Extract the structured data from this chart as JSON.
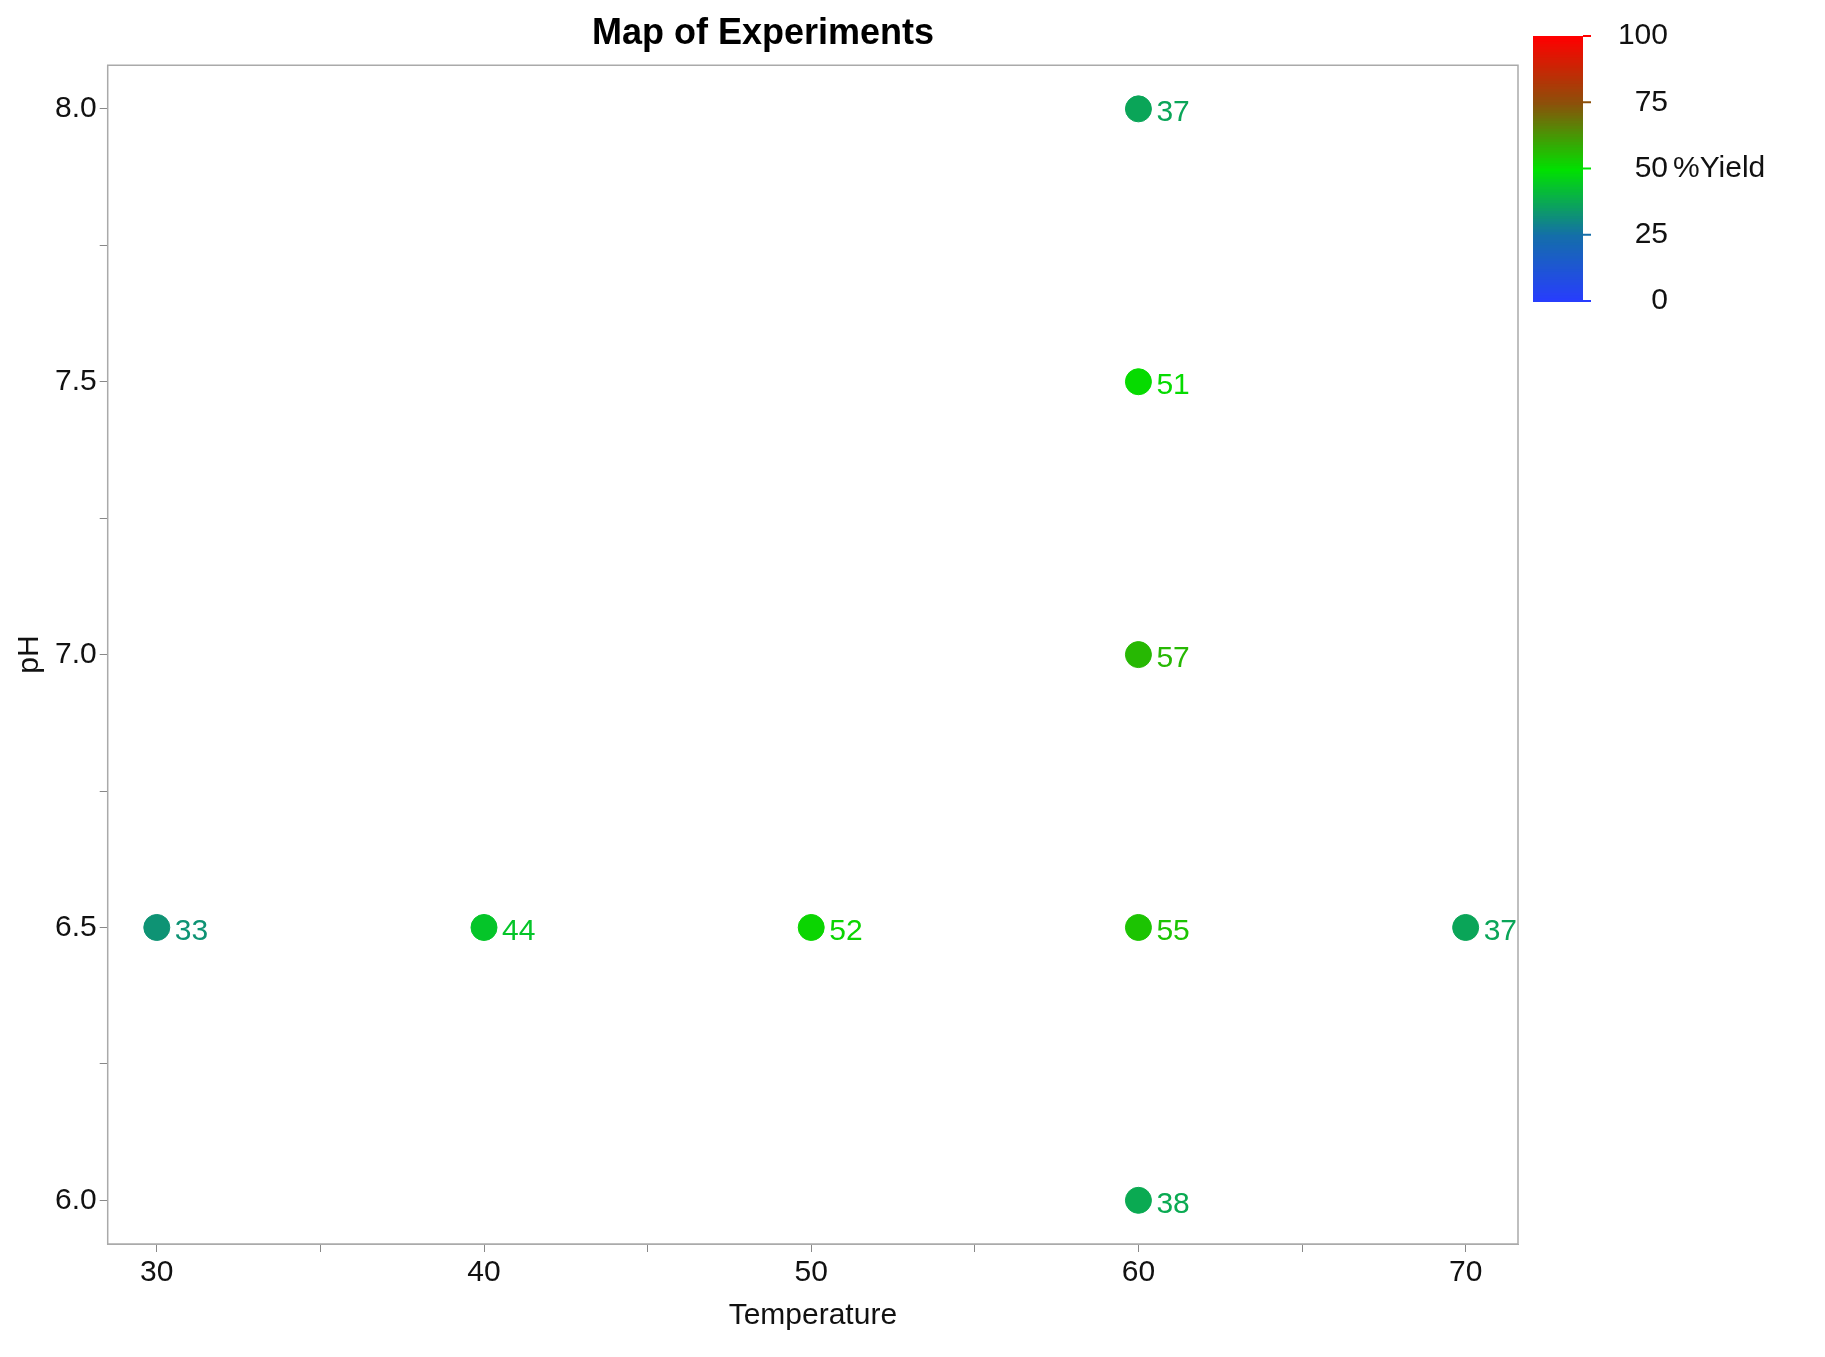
{
  "chart_data": {
    "type": "scatter",
    "title": "Map of Experiments",
    "xlabel": "Temperature",
    "ylabel": "pH",
    "clabel": "%Yield",
    "x": [
      30,
      40,
      50,
      60,
      70,
      60,
      60,
      60,
      60
    ],
    "values": [
      6.5,
      6.5,
      6.5,
      6.5,
      6.5,
      6.0,
      7.0,
      7.5,
      8.0
    ],
    "cvalues": [
      33,
      44,
      52,
      55,
      37,
      38,
      57,
      51,
      37
    ],
    "annotations": [
      {
        "text": "33",
        "x": 30,
        "y": 6.5
      },
      {
        "text": "44",
        "x": 40,
        "y": 6.5
      },
      {
        "text": "52",
        "x": 50,
        "y": 6.5
      },
      {
        "text": "55",
        "x": 60,
        "y": 6.5
      },
      {
        "text": "37",
        "x": 70,
        "y": 6.5
      },
      {
        "text": "38",
        "x": 60,
        "y": 6.0
      },
      {
        "text": "57",
        "x": 60,
        "y": 7.0
      },
      {
        "text": "51",
        "x": 60,
        "y": 7.5
      },
      {
        "text": "37",
        "x": 60,
        "y": 8.0
      }
    ],
    "xlim": [
      28.5,
      71.6
    ],
    "ylim": [
      5.92,
      8.08
    ],
    "xticks": [
      30,
      {
        "value": 35,
        "label": null
      },
      40,
      {
        "value": 45,
        "label": null
      },
      50,
      {
        "value": 55,
        "label": null
      },
      60,
      {
        "value": 65,
        "label": null
      },
      70
    ],
    "yticks": [
      {
        "value": 6.0,
        "label": "6.0"
      },
      {
        "value": 6.25,
        "label": null
      },
      {
        "value": 6.5,
        "label": "6.5"
      },
      {
        "value": 6.75,
        "label": null
      },
      {
        "value": 7.0,
        "label": "7.0"
      },
      {
        "value": 7.25,
        "label": null
      },
      {
        "value": 7.5,
        "label": "7.5"
      },
      {
        "value": 7.75,
        "label": null
      },
      {
        "value": 8.0,
        "label": "8.0"
      }
    ],
    "clim": [
      0,
      100
    ],
    "cticks": [
      0,
      25,
      50,
      75,
      100
    ],
    "grid": false,
    "legend": false,
    "marker": "circle"
  }
}
